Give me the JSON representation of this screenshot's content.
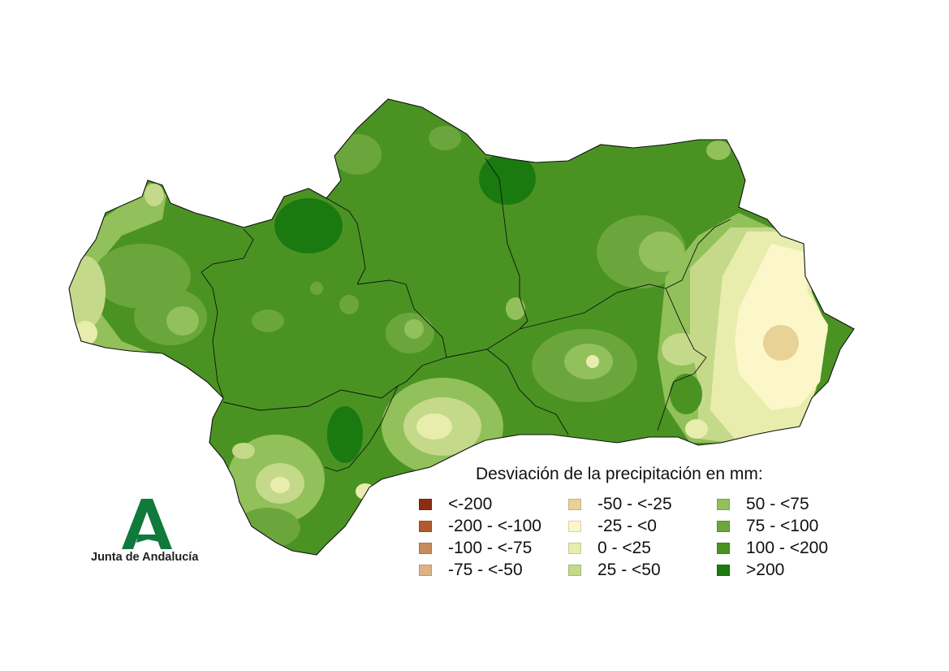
{
  "legend": {
    "title": "Desviación de la precipitación en mm:",
    "columns": [
      [
        {
          "label": "<-200",
          "color": "#8c2d12"
        },
        {
          "label": "-200 - <-100",
          "color": "#b25a2f"
        },
        {
          "label": "-100 - <-75",
          "color": "#c98a5d"
        },
        {
          "label": "-75 - <-50",
          "color": "#ddb285"
        }
      ],
      [
        {
          "label": "-50 - <-25",
          "color": "#e9d295"
        },
        {
          "label": "-25 - <0",
          "color": "#fbf7c8"
        },
        {
          "label": "0 - <25",
          "color": "#e8edae"
        },
        {
          "label": "25 - <50",
          "color": "#c5d98a"
        }
      ],
      [
        {
          "label": "50 - <75",
          "color": "#92c05a"
        },
        {
          "label": "75 - <100",
          "color": "#6ba63d"
        },
        {
          "label": "100 - <200",
          "color": "#4a9323"
        },
        {
          "label": ">200",
          "color": "#1a7a10"
        }
      ]
    ]
  },
  "logo": {
    "text": "Junta de Andalucía",
    "color": "#0f7a3c"
  }
}
